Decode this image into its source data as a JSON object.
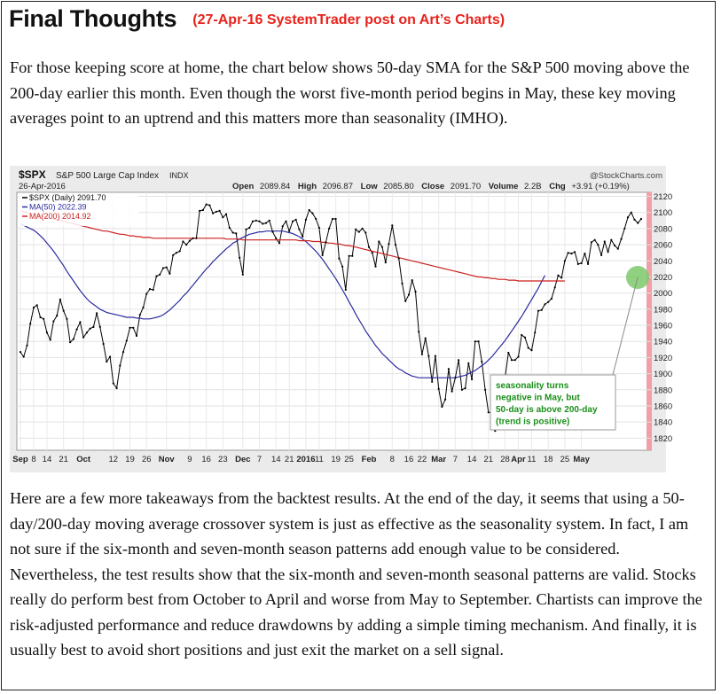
{
  "header": {
    "title": "Final Thoughts",
    "subtitle": "(27-Apr-16 SystemTrader post on Art’s Charts)"
  },
  "intro_paragraph": "For those keeping score at home, the chart below shows 50-day SMA for the S&P 500 moving above the 200-day earlier this month. Even though the worst five-month period begins in May, these key moving averages point to an uptrend and this matters more than seasonality (IMHO).",
  "closing_paragraph": "Here are a few more takeaways from the backtest results. At the end of the day, it seems that using a 50-day/200-day moving average crossover system is just as effective as the seasonality system. In fact, I am not sure if the six-month and seven-month season patterns add enough value to be considered.  Nevertheless, the test results show that the six-month and seven-month seasonal patterns are valid. Stocks really do perform best from October to April and worse from May to September. Chartists can improve the risk-adjusted performance and reduce drawdowns by adding a simple timing mechanism. And finally, it is usually best to avoid short positions and just exit the market on a sell signal.",
  "chart_data": {
    "type": "line",
    "symbol": "$SPX",
    "name": "S&P 500 Large Cap Index",
    "exchange": "INDX",
    "watermark": "@StockCharts.com",
    "date": "26-Apr-2016",
    "ohlc_labels": {
      "open_label": "Open",
      "open": "2089.84",
      "high_label": "High",
      "high": "2096.87",
      "low_label": "Low",
      "low": "2085.80",
      "close_label": "Close",
      "close": "2091.70",
      "volume_label": "Volume",
      "volume": "2.2B",
      "chg_label": "Chg",
      "chg": "+3.91 (+0.19%)"
    },
    "legend": [
      {
        "text": "$SPX (Daily) 2091.70",
        "color": "#000000"
      },
      {
        "text": "MA(50) 2022.39",
        "color": "#2a2aa0"
      },
      {
        "text": "MA(200) 2014.92",
        "color": "#cc1f1f"
      }
    ],
    "ylim": [
      1805,
      2125
    ],
    "y_ticks": [
      1820,
      1840,
      1860,
      1880,
      1900,
      1920,
      1940,
      1960,
      1980,
      2000,
      2020,
      2040,
      2060,
      2080,
      2100,
      2120
    ],
    "x_tick_labels": [
      {
        "label": "Sep",
        "bold": true
      },
      {
        "label": "8"
      },
      {
        "label": "14"
      },
      {
        "label": "21"
      },
      {
        "label": "Oct",
        "bold": true
      },
      {
        "label": "12"
      },
      {
        "label": "19"
      },
      {
        "label": "26"
      },
      {
        "label": "Nov",
        "bold": true
      },
      {
        "label": "9"
      },
      {
        "label": "16"
      },
      {
        "label": "23"
      },
      {
        "label": "Dec",
        "bold": true
      },
      {
        "label": "7"
      },
      {
        "label": "14"
      },
      {
        "label": "21"
      },
      {
        "label": "2016",
        "bold": true
      },
      {
        "label": "11"
      },
      {
        "label": "19"
      },
      {
        "label": "25"
      },
      {
        "label": "Feb",
        "bold": true
      },
      {
        "label": "8"
      },
      {
        "label": "16"
      },
      {
        "label": "22"
      },
      {
        "label": "Mar",
        "bold": true
      },
      {
        "label": "7"
      },
      {
        "label": "14"
      },
      {
        "label": "21"
      },
      {
        "label": "28"
      },
      {
        "label": "Apr",
        "bold": true
      },
      {
        "label": "11"
      },
      {
        "label": "18"
      },
      {
        "label": "25"
      },
      {
        "label": "May",
        "bold": true
      }
    ],
    "x_tick_index": [
      0,
      4,
      8,
      13,
      19,
      28,
      33,
      38,
      44,
      51,
      56,
      61,
      67,
      72,
      77,
      81,
      86,
      90,
      95,
      99,
      105,
      112,
      117,
      121,
      126,
      131,
      136,
      141,
      146,
      150,
      154,
      159,
      164,
      169
    ],
    "series": [
      {
        "name": "$SPX",
        "values": [
          1927,
          1921,
          1935,
          1962,
          1982,
          1985,
          1970,
          1968,
          1951,
          1942,
          1965,
          1972,
          1992,
          1978,
          1968,
          1939,
          1943,
          1955,
          1964,
          1945,
          1951,
          1956,
          1958,
          1975,
          1958,
          1937,
          1915,
          1921,
          1888,
          1882,
          1910,
          1927,
          1941,
          1957,
          1957,
          1947,
          1973,
          1982,
          1999,
          2005,
          2004,
          2021,
          2023,
          2031,
          2032,
          2024,
          2047,
          2050,
          2052,
          2064,
          2060,
          2065,
          2068,
          2068,
          2102,
          2103,
          2110,
          2109,
          2099,
          2101,
          2102,
          2094,
          2098,
          2081,
          2075,
          2074,
          2044,
          2023,
          2079,
          2081,
          2089,
          2090,
          2089,
          2086,
          2087,
          2090,
          2076,
          2068,
          2062,
          2083,
          2089,
          2077,
          2089,
          2091,
          2079,
          2070,
          2091,
          2103,
          2099,
          2092,
          2081,
          2047,
          2063,
          2080,
          2092,
          2092,
          2043,
          2033,
          2004,
          2046,
          2046,
          2079,
          2076,
          2080,
          2075,
          2057,
          2050,
          2033,
          2064,
          2057,
          2038,
          2061,
          2084,
          2060,
          2043,
          2012,
          1990,
          1998,
          2016,
          2002,
          1952,
          1924,
          1944,
          1922,
          1890,
          1922,
          1881,
          1859,
          1868,
          1906,
          1878,
          1895,
          1917,
          1880,
          1882,
          1913,
          1893,
          1940,
          1940,
          1915,
          1880,
          1852,
          1852,
          1829,
          1864,
          1864,
          1895,
          1926,
          1917,
          1917,
          1921,
          1948,
          1945,
          1932,
          1929,
          1951,
          1978,
          1979,
          1986,
          1989,
          1993,
          2007,
          2022,
          2019,
          2040,
          2050,
          2049,
          2051,
          2036,
          2037,
          2049,
          2036,
          2063,
          2066,
          2060,
          2047,
          2064,
          2051,
          2066,
          2059,
          2055,
          2067,
          2080,
          2094,
          2100,
          2091,
          2087,
          2092
        ]
      },
      {
        "name": "MA(50)",
        "values": [
          2086,
          2084,
          2082,
          2080,
          2078,
          2075,
          2071,
          2067,
          2062,
          2057,
          2052,
          2046,
          2040,
          2034,
          2027,
          2021,
          2015,
          2009,
          2003,
          1998,
          1993,
          1989,
          1986,
          1983,
          1980,
          1978,
          1976,
          1975,
          1974,
          1973,
          1972,
          1971,
          1970,
          1970,
          1970,
          1969,
          1969,
          1968,
          1968,
          1968,
          1969,
          1970,
          1971,
          1973,
          1976,
          1979,
          1983,
          1987,
          1991,
          1996,
          2000,
          2005,
          2010,
          2015,
          2020,
          2025,
          2030,
          2034,
          2039,
          2043,
          2047,
          2051,
          2055,
          2058,
          2062,
          2064,
          2067,
          2069,
          2071,
          2073,
          2074,
          2075,
          2076,
          2076,
          2077,
          2077,
          2077,
          2077,
          2077,
          2077,
          2076,
          2075,
          2074,
          2072,
          2070,
          2067,
          2064,
          2060,
          2056,
          2052,
          2047,
          2042,
          2036,
          2030,
          2024,
          2018,
          2011,
          2004,
          1997,
          1989,
          1982,
          1974,
          1967,
          1960,
          1953,
          1947,
          1941,
          1935,
          1930,
          1925,
          1921,
          1917,
          1913,
          1909,
          1906,
          1904,
          1901,
          1899,
          1897,
          1896,
          1895,
          1895,
          1895,
          1895,
          1895,
          1895,
          1895,
          1895,
          1895,
          1895,
          1895,
          1895,
          1896,
          1897,
          1898,
          1900,
          1902,
          1904,
          1907,
          1910,
          1913,
          1917,
          1921,
          1926,
          1931,
          1936,
          1941,
          1947,
          1953,
          1959,
          1965,
          1971,
          1978,
          1985,
          1992,
          1999,
          2006,
          2014,
          2022
        ]
      },
      {
        "name": "MA(200)",
        "values": [
          2102,
          2101,
          2100,
          2099,
          2098,
          2097,
          2096,
          2095,
          2094,
          2093,
          2092,
          2091,
          2090,
          2089,
          2088,
          2087,
          2086,
          2085,
          2084,
          2083,
          2082,
          2081,
          2080,
          2079,
          2078,
          2077,
          2077,
          2076,
          2075,
          2074,
          2073,
          2073,
          2072,
          2071,
          2071,
          2070,
          2070,
          2069,
          2069,
          2069,
          2068,
          2068,
          2068,
          2068,
          2068,
          2068,
          2068,
          2068,
          2068,
          2068,
          2068,
          2068,
          2068,
          2068,
          2068,
          2068,
          2068,
          2068,
          2068,
          2068,
          2068,
          2068,
          2067,
          2067,
          2067,
          2067,
          2067,
          2066,
          2066,
          2066,
          2066,
          2066,
          2066,
          2066,
          2066,
          2066,
          2066,
          2066,
          2066,
          2066,
          2066,
          2066,
          2066,
          2066,
          2065,
          2065,
          2065,
          2065,
          2064,
          2064,
          2064,
          2063,
          2063,
          2062,
          2062,
          2061,
          2061,
          2060,
          2059,
          2059,
          2058,
          2057,
          2056,
          2055,
          2054,
          2053,
          2052,
          2051,
          2050,
          2049,
          2048,
          2047,
          2046,
          2045,
          2044,
          2043,
          2042,
          2041,
          2040,
          2039,
          2038,
          2037,
          2036,
          2035,
          2034,
          2033,
          2032,
          2031,
          2030,
          2029,
          2028,
          2027,
          2026,
          2025,
          2024,
          2023,
          2022,
          2021,
          2020,
          2020,
          2019,
          2019,
          2018,
          2018,
          2017,
          2017,
          2017,
          2016,
          2016,
          2016,
          2015,
          2015,
          2015,
          2015,
          2015,
          2015,
          2015,
          2015,
          2015,
          2015,
          2015,
          2015,
          2015,
          2015,
          2015
        ]
      }
    ],
    "annotation": {
      "lines": [
        "seasonality turns",
        "negative in May, but",
        "50-day is above 200-day",
        "(trend is positive)"
      ],
      "text_color": "#1a8f1a",
      "highlight_color": "#7cc96b",
      "may_band_color": "#f0a0a6"
    }
  }
}
